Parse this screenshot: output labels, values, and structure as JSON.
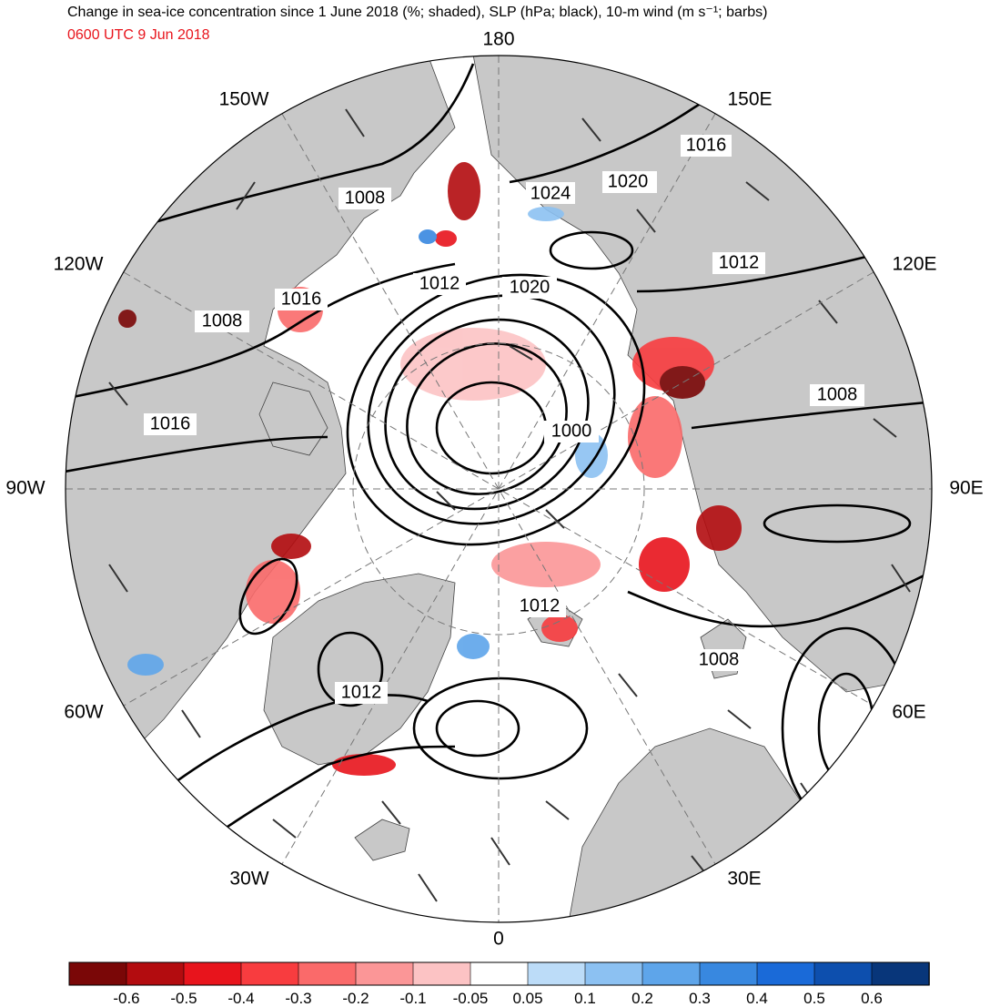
{
  "header": {
    "title": "Change in sea-ice concentration since 1 June 2018 (%; shaded), SLP (hPa; black), 10-m wind (m s⁻¹; barbs)",
    "valid_time": "0600 UTC 9 Jun 2018"
  },
  "map": {
    "projection": "north polar stereographic",
    "longitude_labels": [
      {
        "text": "180",
        "lon": 180
      },
      {
        "text": "150E",
        "lon": 150
      },
      {
        "text": "120E",
        "lon": 120
      },
      {
        "text": "90E",
        "lon": 90
      },
      {
        "text": "60E",
        "lon": 60
      },
      {
        "text": "30E",
        "lon": 30
      },
      {
        "text": "0",
        "lon": 0
      },
      {
        "text": "30W",
        "lon": -30
      },
      {
        "text": "60W",
        "lon": -60
      },
      {
        "text": "90W",
        "lon": -90
      },
      {
        "text": "120W",
        "lon": -120
      },
      {
        "text": "150W",
        "lon": -150
      }
    ],
    "isobar_labels": [
      "1024",
      "1020",
      "1016",
      "1008",
      "1012",
      "1020",
      "1012",
      "1016",
      "1008",
      "1008",
      "1016",
      "1000",
      "1012",
      "1008",
      "1012"
    ],
    "colors": {
      "land": "#c8c8c8",
      "ocean": "#ffffff",
      "isobar": "#000000",
      "coastline": "#333333"
    }
  },
  "colorbar": {
    "bins": [
      {
        "color": "#7a0707"
      },
      {
        "color": "#b30c0f"
      },
      {
        "color": "#e8141c"
      },
      {
        "color": "#f83c3f"
      },
      {
        "color": "#fa6a6a"
      },
      {
        "color": "#fb9697"
      },
      {
        "color": "#fcc3c4"
      },
      {
        "color": "#ffffff"
      },
      {
        "color": "#bcdcf8"
      },
      {
        "color": "#8cc1f2"
      },
      {
        "color": "#5ea5ea"
      },
      {
        "color": "#3888e0"
      },
      {
        "color": "#1a6ad8"
      },
      {
        "color": "#0d4fae"
      },
      {
        "color": "#08367a"
      }
    ],
    "tick_labels": [
      "-0.6",
      "-0.5",
      "-0.4",
      "-0.3",
      "-0.2",
      "-0.1",
      "-0.05",
      "0.05",
      "0.1",
      "0.2",
      "0.3",
      "0.4",
      "0.5",
      "0.6"
    ]
  }
}
